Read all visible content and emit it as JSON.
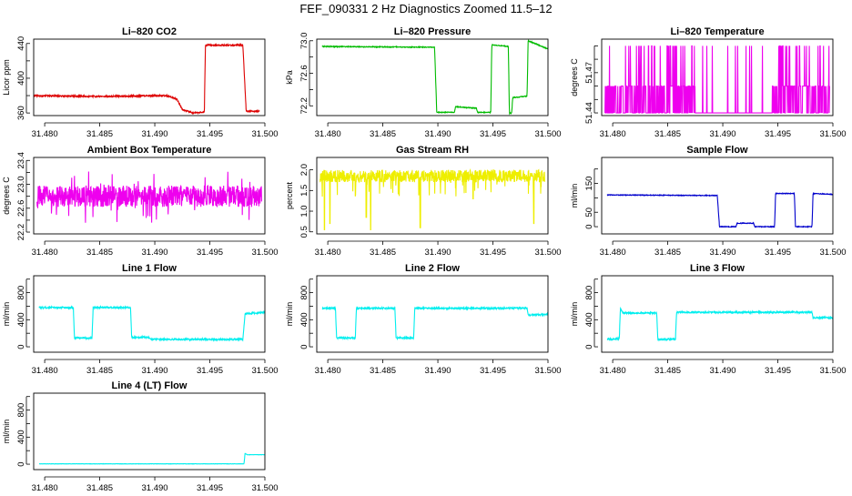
{
  "page": {
    "title": "FEF_090331  2 Hz Diagnostics Zoomed 11.5–12"
  },
  "chart_data": [
    {
      "type": "line",
      "title": "Li–820 CO2",
      "ylabel": "Licor ppm",
      "color": "#dd0000",
      "xlim": [
        31.479,
        31.5
      ],
      "ylim": [
        357,
        445
      ],
      "xticks": [
        "31.480",
        "31.485",
        "31.490",
        "31.495",
        "31.500"
      ],
      "yticks": [
        "360",
        "400",
        "440"
      ],
      "yticks_extra": [
        "380",
        "420"
      ],
      "x": [
        31.479,
        31.485,
        31.491,
        31.492,
        31.4925,
        31.4935,
        31.4945,
        31.4946,
        31.498,
        31.4983,
        31.4995
      ],
      "y": [
        380,
        379,
        380,
        376,
        364,
        360,
        361,
        438,
        438,
        362,
        362
      ],
      "noise": 0.8
    },
    {
      "type": "line",
      "title": "Li–820 Pressure",
      "ylabel": "kPa",
      "color": "#00bb00",
      "xlim": [
        31.479,
        31.5
      ],
      "ylim": [
        72.08,
        73.02
      ],
      "xticks": [
        "31.480",
        "31.485",
        "31.490",
        "31.495",
        "31.500"
      ],
      "yticks": [
        "72.2",
        "72.6",
        "73.0"
      ],
      "yticks_extra": [
        "72.4",
        "72.8"
      ],
      "x": [
        31.4795,
        31.4897,
        31.4899,
        31.4915,
        31.4916,
        31.4935,
        31.4936,
        31.4948,
        31.4949,
        31.4964,
        31.4965,
        31.4967,
        31.4968,
        31.4981,
        31.4982,
        31.5
      ],
      "y": [
        72.93,
        72.92,
        72.12,
        72.12,
        72.19,
        72.17,
        72.12,
        72.12,
        72.95,
        72.93,
        72.11,
        72.11,
        72.3,
        72.32,
        73.0,
        72.9
      ],
      "noise": 0.005
    },
    {
      "type": "line",
      "title": "Li–820 Temperature",
      "ylabel": "degrees C",
      "color": "#ee00ee",
      "xlim": [
        31.479,
        31.5
      ],
      "ylim": [
        51.438,
        51.495
      ],
      "xticks": [
        "31.480",
        "31.485",
        "31.490",
        "31.495",
        "31.500"
      ],
      "yticks": [
        "51.44",
        "51.47"
      ],
      "yticks_extra": [
        "51.45",
        "51.46",
        "51.48",
        "51.49"
      ],
      "levels": [
        51.44,
        51.46
      ],
      "spike_level": 51.49,
      "quiet_range": [
        31.4875,
        31.4945
      ],
      "seed": 17
    },
    {
      "type": "line",
      "title": "Ambient Box Temperature",
      "ylabel": "degrees C",
      "color": "#ee00ee",
      "xlim": [
        31.479,
        31.5
      ],
      "ylim": [
        22.17,
        23.45
      ],
      "xticks": [
        "31.480",
        "31.485",
        "31.490",
        "31.495",
        "31.500"
      ],
      "yticks": [
        "22.2",
        "22.6",
        "23.0",
        "23.4"
      ],
      "yticks_extra": [
        "22.4",
        "22.8",
        "23.2"
      ],
      "center": 22.8,
      "band": 0.18,
      "spikes": 0.45,
      "seed": 31
    },
    {
      "type": "line",
      "title": "Gas Stream RH",
      "ylabel": "percent",
      "color": "#eeee00",
      "xlim": [
        31.479,
        31.5
      ],
      "ylim": [
        0.45,
        2.3
      ],
      "xticks": [
        "31.480",
        "31.485",
        "31.490",
        "31.495",
        "31.500"
      ],
      "yticks": [
        "0.5",
        "1.0",
        "1.5",
        "2.0"
      ],
      "center": 1.85,
      "band": 0.15,
      "dips": [
        [
          31.4797,
          0.55
        ],
        [
          31.4802,
          0.7
        ],
        [
          31.4835,
          0.85
        ],
        [
          31.4839,
          0.55
        ],
        [
          31.4884,
          0.6
        ],
        [
          31.4932,
          1.3
        ],
        [
          31.4987,
          0.7
        ]
      ],
      "seed": 47
    },
    {
      "type": "line",
      "title": "Sample Flow",
      "ylabel": "ml/min",
      "color": "#0000cc",
      "xlim": [
        31.479,
        31.5
      ],
      "ylim": [
        -25,
        240
      ],
      "xticks": [
        "31.480",
        "31.485",
        "31.490",
        "31.495",
        "31.500"
      ],
      "yticks": [
        "0",
        "50",
        "150"
      ],
      "yticks_extra": [
        "100",
        "200"
      ],
      "x": [
        31.4795,
        31.4895,
        31.4897,
        31.4912,
        31.4913,
        31.4928,
        31.4929,
        31.4947,
        31.4948,
        31.4965,
        31.4966,
        31.4981,
        31.4982,
        31.5
      ],
      "y": [
        110,
        108,
        0,
        0,
        12,
        12,
        0,
        0,
        115,
        115,
        0,
        0,
        115,
        112
      ],
      "noise": 1.2
    },
    {
      "type": "line",
      "title": "Line 1 Flow",
      "ylabel": "ml/min",
      "color": "#00eeee",
      "xlim": [
        31.479,
        31.5
      ],
      "ylim": [
        -80,
        1050
      ],
      "xticks": [
        "31.480",
        "31.485",
        "31.490",
        "31.495",
        "31.500"
      ],
      "yticks": [
        "0",
        "400",
        "800"
      ],
      "yticks_extra": [
        "200",
        "600",
        "1000"
      ],
      "x": [
        31.4795,
        31.4826,
        31.4827,
        31.4843,
        31.4844,
        31.4878,
        31.4879,
        31.4895,
        31.4896,
        31.498,
        31.4982,
        31.5
      ],
      "y": [
        580,
        580,
        130,
        130,
        580,
        580,
        140,
        140,
        110,
        110,
        490,
        510
      ],
      "noise": 12
    },
    {
      "type": "line",
      "title": "Line 2 Flow",
      "ylabel": "ml/min",
      "color": "#00eeee",
      "xlim": [
        31.479,
        31.5
      ],
      "ylim": [
        -80,
        1050
      ],
      "xticks": [
        "31.480",
        "31.485",
        "31.490",
        "31.495",
        "31.500"
      ],
      "yticks": [
        "0",
        "400",
        "800"
      ],
      "yticks_extra": [
        "200",
        "600",
        "1000"
      ],
      "x": [
        31.4795,
        31.4807,
        31.4808,
        31.4825,
        31.4826,
        31.4861,
        31.4862,
        31.4878,
        31.4879,
        31.4981,
        31.4982,
        31.5
      ],
      "y": [
        570,
        570,
        130,
        130,
        570,
        570,
        130,
        130,
        570,
        570,
        470,
        480
      ],
      "noise": 12
    },
    {
      "type": "line",
      "title": "Line 3 Flow",
      "ylabel": "ml/min",
      "color": "#00eeee",
      "xlim": [
        31.479,
        31.5
      ],
      "ylim": [
        -80,
        1050
      ],
      "xticks": [
        "31.480",
        "31.485",
        "31.490",
        "31.495",
        "31.500"
      ],
      "yticks": [
        "0",
        "400",
        "800"
      ],
      "yticks_extra": [
        "200",
        "600",
        "1000"
      ],
      "x": [
        31.4795,
        31.4806,
        31.4807,
        31.4809,
        31.484,
        31.4841,
        31.4857,
        31.4858,
        31.4981,
        31.4982,
        31.5
      ],
      "y": [
        110,
        120,
        580,
        500,
        500,
        110,
        110,
        510,
        510,
        430,
        430
      ],
      "noise": 12
    },
    {
      "type": "line",
      "title": "Line 4 (LT) Flow",
      "ylabel": "ml/min",
      "color": "#00eeee",
      "xlim": [
        31.479,
        31.5
      ],
      "ylim": [
        -80,
        1050
      ],
      "xticks": [
        "31.480",
        "31.485",
        "31.490",
        "31.495",
        "31.500"
      ],
      "yticks": [
        "0",
        "400",
        "800"
      ],
      "yticks_extra": [
        "200",
        "600",
        "1000"
      ],
      "x": [
        31.4795,
        31.4981,
        31.4982,
        31.4984,
        31.5
      ],
      "y": [
        5,
        5,
        160,
        140,
        140
      ],
      "noise": 2
    }
  ]
}
